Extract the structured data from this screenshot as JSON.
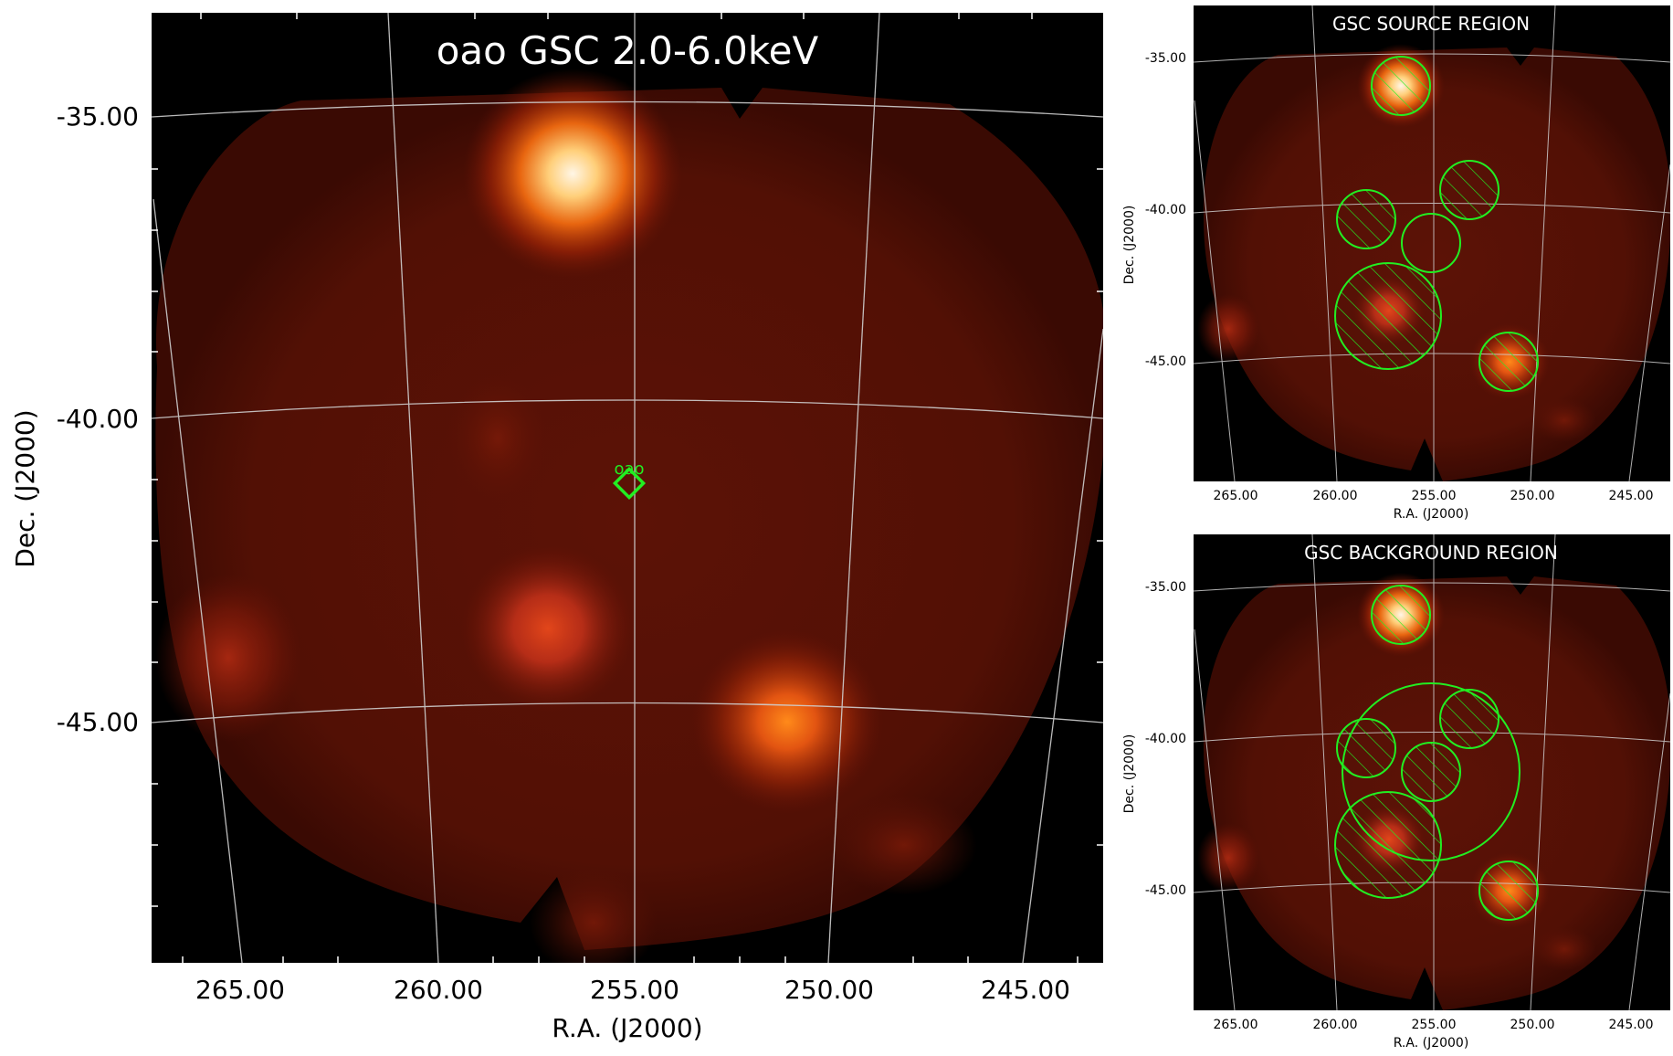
{
  "main": {
    "title": "oao GSC 2.0-6.0keV",
    "xlabel": "R.A. (J2000)",
    "ylabel": "Dec. (J2000)",
    "x_ticks": [
      "265.00",
      "260.00",
      "255.00",
      "250.00",
      "245.00"
    ],
    "y_ticks": [
      "-35.00",
      "-40.00",
      "-45.00"
    ],
    "marker_label": "oao"
  },
  "source_panel": {
    "title": "GSC SOURCE REGION",
    "xlabel": "R.A. (J2000)",
    "ylabel": "Dec. (J2000)",
    "x_ticks": [
      "265.00",
      "260.00",
      "255.00",
      "250.00",
      "245.00"
    ],
    "y_ticks": [
      "-35.00",
      "-40.00",
      "-45.00"
    ]
  },
  "background_panel": {
    "title": "GSC BACKGROUND REGION",
    "xlabel": "R.A. (J2000)",
    "ylabel": "Dec. (J2000)",
    "x_ticks": [
      "265.00",
      "260.00",
      "255.00",
      "250.00",
      "245.00"
    ],
    "y_ticks": [
      "-35.00",
      "-40.00",
      "-45.00"
    ]
  },
  "colors": {
    "region": "#22ee22",
    "grid": "#cfcfcf",
    "hot_core": "#fff2da",
    "hot_mid": "#ff9a28",
    "diffuse": "#5c0f03",
    "frame": "#000000"
  }
}
